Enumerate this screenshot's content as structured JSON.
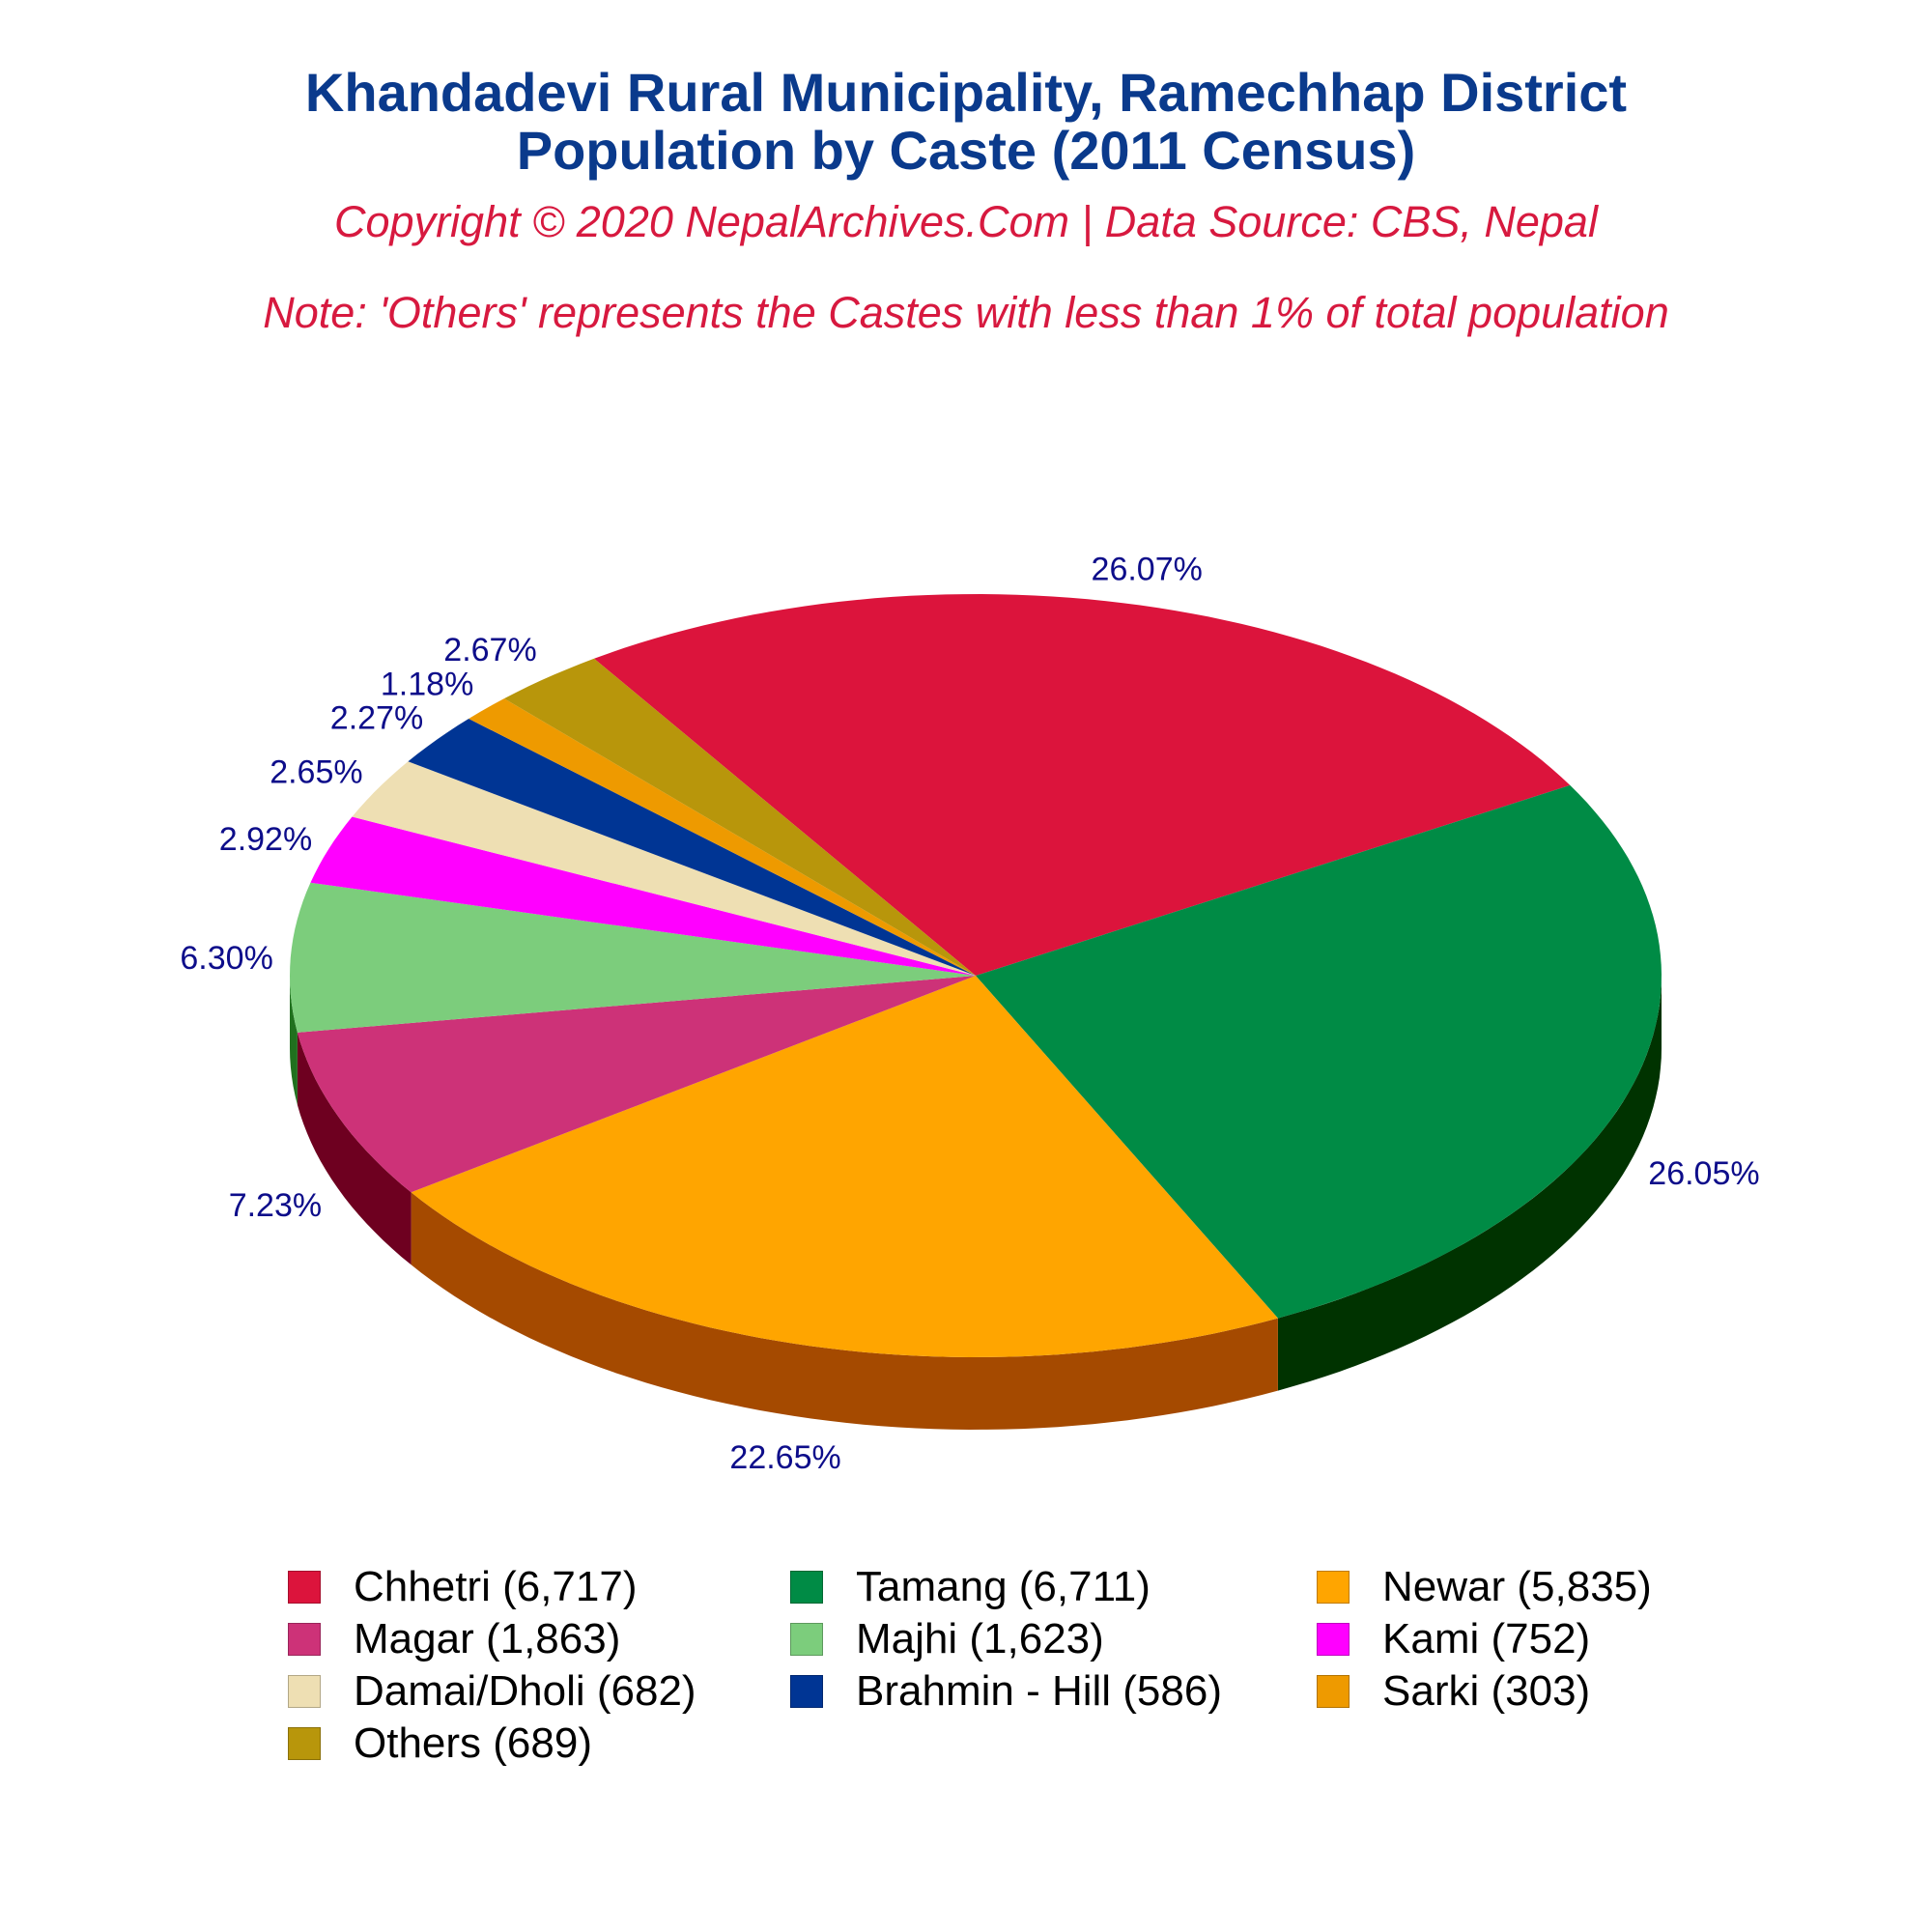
{
  "header": {
    "title_line1": "Khandadevi Rural Municipality, Ramechhap District",
    "title_line2": "Population by Caste (2011 Census)",
    "copyright": "Copyright © 2020 NepalArchives.Com | Data Source: CBS, Nepal",
    "note": "Note: 'Others' represents the Castes with less than 1% of total population"
  },
  "chart_data": {
    "type": "pie",
    "style": "3d",
    "title": "Khandadevi Rural Municipality, Ramechhap District Population by Caste (2011 Census)",
    "slices": [
      {
        "name": "Chhetri",
        "value": 6717,
        "percent_label": "26.07%",
        "legend_label": "Chhetri (6,717)",
        "color": "#dc143c",
        "side_color": "#7a0b22"
      },
      {
        "name": "Tamang",
        "value": 6711,
        "percent_label": "26.05%",
        "legend_label": "Tamang (6,711)",
        "color": "#008b45",
        "side_color": "#003300"
      },
      {
        "name": "Newar",
        "value": 5835,
        "percent_label": "22.65%",
        "legend_label": "Newar (5,835)",
        "color": "#ffa500",
        "side_color": "#a54a00"
      },
      {
        "name": "Magar",
        "value": 1863,
        "percent_label": "7.23%",
        "legend_label": "Magar (1,863)",
        "color": "#cd3278",
        "side_color": "#6e0020"
      },
      {
        "name": "Majhi",
        "value": 1623,
        "percent_label": "6.30%",
        "legend_label": "Majhi (1,623)",
        "color": "#7ccd7c",
        "side_color": "#20701e"
      },
      {
        "name": "Kami",
        "value": 752,
        "percent_label": "2.92%",
        "legend_label": "Kami (752)",
        "color": "#ff00ff",
        "side_color": "#9a009a"
      },
      {
        "name": "Damai/Dholi",
        "value": 682,
        "percent_label": "2.65%",
        "legend_label": "Damai/Dholi (682)",
        "color": "#eedfb3",
        "side_color": "#9a8c62"
      },
      {
        "name": "Brahmin - Hill",
        "value": 586,
        "percent_label": "2.27%",
        "legend_label": "Brahmin - Hill (586)",
        "color": "#003594",
        "side_color": "#001a4a"
      },
      {
        "name": "Sarki",
        "value": 303,
        "percent_label": "1.18%",
        "legend_label": "Sarki (303)",
        "color": "#ee9a00",
        "side_color": "#7a4f00"
      },
      {
        "name": "Others",
        "value": 689,
        "percent_label": "2.67%",
        "legend_label": "Others (689)",
        "color": "#b8960b",
        "side_color": "#5e4c05"
      }
    ],
    "legend_placement": "bottom"
  }
}
